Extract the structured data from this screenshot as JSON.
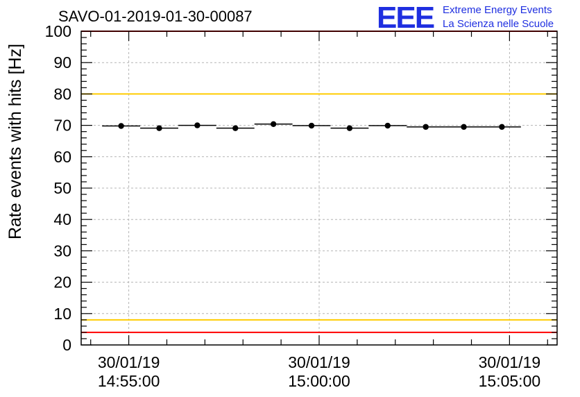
{
  "chart_data": {
    "type": "scatter",
    "title": "SAVO-01-2019-01-30-00087",
    "ylabel": "Rate events with hits [Hz]",
    "xlabel": "",
    "ylim": [
      0,
      100
    ],
    "xlim_minutes": [
      -1.25,
      11.25
    ],
    "x_ticks": [
      {
        "minute": 0,
        "date": "30/01/19",
        "time": "14:55:00"
      },
      {
        "minute": 5,
        "date": "30/01/19",
        "time": "15:00:00"
      },
      {
        "minute": 10,
        "date": "30/01/19",
        "time": "15:05:00"
      }
    ],
    "y_ticks": [
      0,
      10,
      20,
      30,
      40,
      50,
      60,
      70,
      80,
      90,
      100
    ],
    "grid": true,
    "series": [
      {
        "name": "Rate",
        "bin_width_minutes": 1,
        "x_minutes": [
          -0.2,
          0.8,
          1.8,
          2.8,
          3.8,
          4.8,
          5.8,
          6.8,
          7.8,
          8.8,
          9.8
        ],
        "values": [
          69.8,
          69.1,
          70.0,
          69.1,
          70.4,
          69.9,
          69.1,
          69.9,
          69.5,
          69.5,
          69.5
        ]
      }
    ],
    "reference_lines": [
      {
        "name": "upper-red-limit",
        "value": 100,
        "color": "#ff0000"
      },
      {
        "name": "upper-yellow-limit",
        "value": 80,
        "color": "#ffcc00"
      },
      {
        "name": "lower-yellow-limit",
        "value": 8,
        "color": "#ffcc00"
      },
      {
        "name": "lower-red-limit",
        "value": 4,
        "color": "#ff0000"
      }
    ]
  },
  "logo": {
    "mark": "EEE",
    "line1": "Extreme Energy Events",
    "line2": "La Scienza nelle Scuole"
  },
  "colors": {
    "marker": "#000000",
    "grid": "#b4b4b4",
    "axis": "#000000",
    "logo": "#1f2fe0"
  }
}
